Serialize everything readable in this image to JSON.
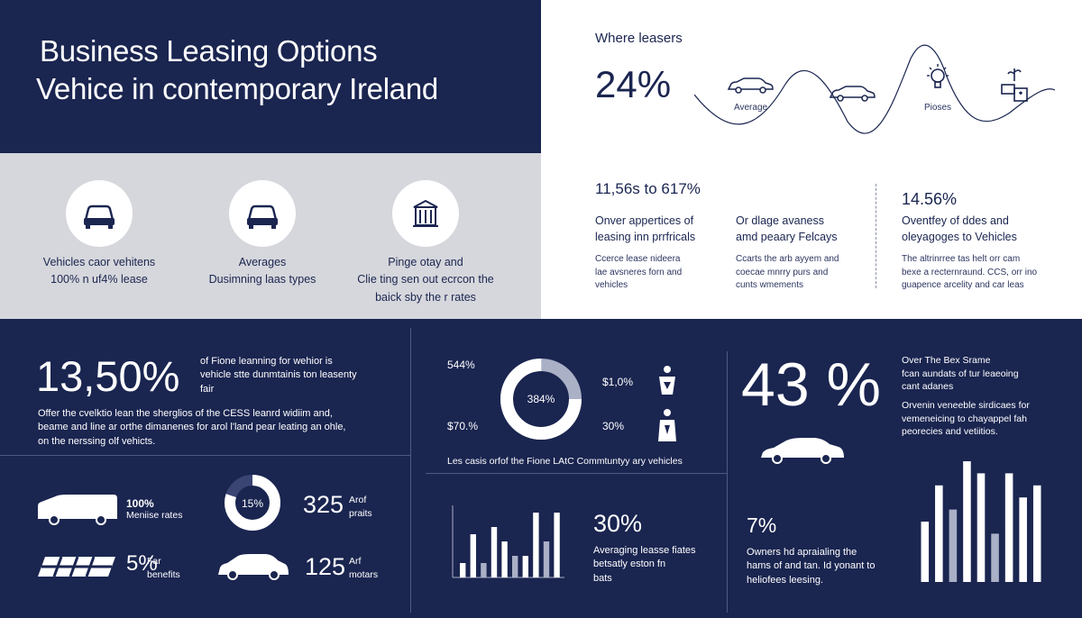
{
  "header": {
    "title_line1": "Business Leasing Options",
    "title_line2": "Vehice in contemporary Ireland"
  },
  "features": [
    {
      "icon": "car-front-icon",
      "line1": "Vehicles caor vehitens",
      "line2": "100% n uf4% lease",
      "line3": ""
    },
    {
      "icon": "car-front-icon",
      "line1": "Averages",
      "line2": "Dusimning laas types",
      "line3": ""
    },
    {
      "icon": "building-icon",
      "line1": "Pinge otay and",
      "line2": "Clie ting sen out ecrcon the",
      "line3": "baick sby the r rates"
    }
  ],
  "top_right": {
    "heading": "Where leasers",
    "stat": "24%",
    "icon_label_1": "Average",
    "icon_label_2": "Pioses",
    "icons": [
      "car-side-icon",
      "car-side-icon",
      "lightbulb-icon",
      "plant-box-icon"
    ]
  },
  "mid_right": {
    "col1": {
      "stat": "11,56s to 617%",
      "head1": "Onver appertices of",
      "head2": "leasing inn prrfricals",
      "sub1": "Ccerce lease nideera",
      "sub2": "lae avsneres forn and",
      "sub3": "vehicles"
    },
    "col2": {
      "head1": "Or dlage avaness",
      "head2": "amd peaary Felcays",
      "sub1": "Ccarts the arb ayyem and",
      "sub2": "coecae mnrry purs and",
      "sub3": "cunts wmements"
    },
    "col3": {
      "stat": "14.56%",
      "head1": "Oventfey of ddes and",
      "head2": "oleyagoges to Vehicles",
      "sub1": "The altrinrree tas helt orr cam",
      "sub2": "bexe a recternraund. CCS, orr ino",
      "sub3": "guapence arcelity and car leas"
    }
  },
  "bottom_left": {
    "big_stat": "13,50%",
    "big_desc_1": "of Fione leanning for wehior is",
    "big_desc_2": "vehicle stte dunmtainis ton leasenty",
    "big_desc_3": "fair",
    "para_1": "Offer the cvelktio lean the sherglios of the CESS leanrd widiim and,",
    "para_2": "beame and line ar orthe dimanenes for arol l'land pear leating an ohle,",
    "para_3": "on the nerssing olf vehicts.",
    "van_pct": "100%",
    "van_label": "Meniise rates",
    "ring_pct": "15%",
    "num1": "325",
    "num1_label_1": "Arof",
    "num1_label_2": "praits",
    "tool_pct": "5%",
    "tool_label_1": "Far",
    "tool_label_2": "benefits",
    "num2": "125",
    "num2_label_1": "Arf",
    "num2_label_2": "motars"
  },
  "bottom_mid": {
    "donut_center": "384%",
    "label_tl": "544%",
    "label_bl": "$70.%",
    "label_tr": "$1,0%",
    "label_br": "30%",
    "caption": "Les casis orfof the Fione LAtC Commtuntyy ary vehicles",
    "bar_stat": "30%",
    "bar_desc_1": "Averaging leasse fiates",
    "bar_desc_2": "betsatly eston fn",
    "bar_desc_3": "bats",
    "icons": [
      "person-icon",
      "person-icon"
    ]
  },
  "bottom_right": {
    "big_stat": "43 %",
    "desc_1": "Over The Bex Srame",
    "desc_2": "fcan aundats of tur leaeoing",
    "desc_3": "cant adanes",
    "desc_4": "Orvenin veneeble sirdicaes for",
    "desc_5": "vemeneicing to chayappel fah",
    "desc_6": "peorecies and vetiitios.",
    "stat_small": "7%",
    "small_desc_1": "Owners hd apraialing the",
    "small_desc_2": "hams of and tan. Id yonant to",
    "small_desc_3": "heliofees leesing."
  },
  "chart_data": [
    {
      "type": "bar",
      "title": "",
      "values": [
        2,
        6,
        2,
        7,
        5,
        3,
        3,
        9,
        5,
        9
      ],
      "ylim": [
        0,
        10
      ],
      "grid": false
    },
    {
      "type": "bar",
      "title": "",
      "values": [
        5,
        8,
        6,
        10,
        9,
        4,
        9,
        7,
        8
      ],
      "ylim": [
        0,
        10
      ],
      "grid": false
    },
    {
      "type": "pie",
      "title": "",
      "values": [
        75,
        25
      ],
      "center_label": "384%"
    },
    {
      "type": "pie",
      "title": "",
      "values": [
        80,
        20
      ],
      "center_label": "15%"
    }
  ],
  "colors": {
    "navy": "#1a2550",
    "grey_panel": "#d6d7dc",
    "bar_muted": "#aab0c6",
    "white": "#ffffff"
  }
}
